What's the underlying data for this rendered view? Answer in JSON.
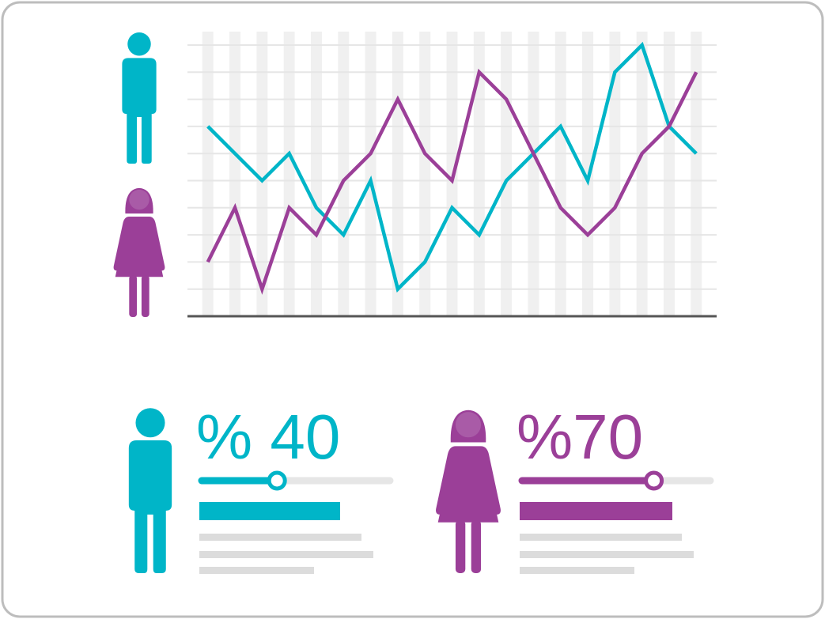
{
  "chart_data": {
    "type": "line",
    "x": [
      1,
      2,
      3,
      4,
      5,
      6,
      7,
      8,
      9,
      10,
      11,
      12,
      13,
      14,
      15,
      16,
      17,
      18,
      19
    ],
    "xlim": [
      0.25,
      19.75
    ],
    "ylim": [
      0,
      10
    ],
    "yticks": [
      1,
      2,
      3,
      4,
      5,
      6,
      7,
      8,
      9,
      10
    ],
    "grid": true,
    "series": [
      {
        "color": "#00b5c8",
        "values": [
          7,
          6,
          5,
          6,
          4,
          3,
          5,
          1,
          2,
          4,
          3,
          5,
          6,
          7,
          5,
          9,
          10,
          7,
          6
        ]
      },
      {
        "color": "#9b3f98",
        "values": [
          2,
          4,
          1,
          4,
          3,
          5,
          6,
          8,
          6,
          5,
          9,
          8,
          6,
          4,
          3,
          4,
          6,
          7,
          9
        ]
      }
    ]
  },
  "stats": [
    {
      "label": "% 40",
      "value": 40,
      "color": "#00b5c8"
    },
    {
      "label": "%70",
      "value": 70,
      "color": "#9b3f98"
    }
  ]
}
